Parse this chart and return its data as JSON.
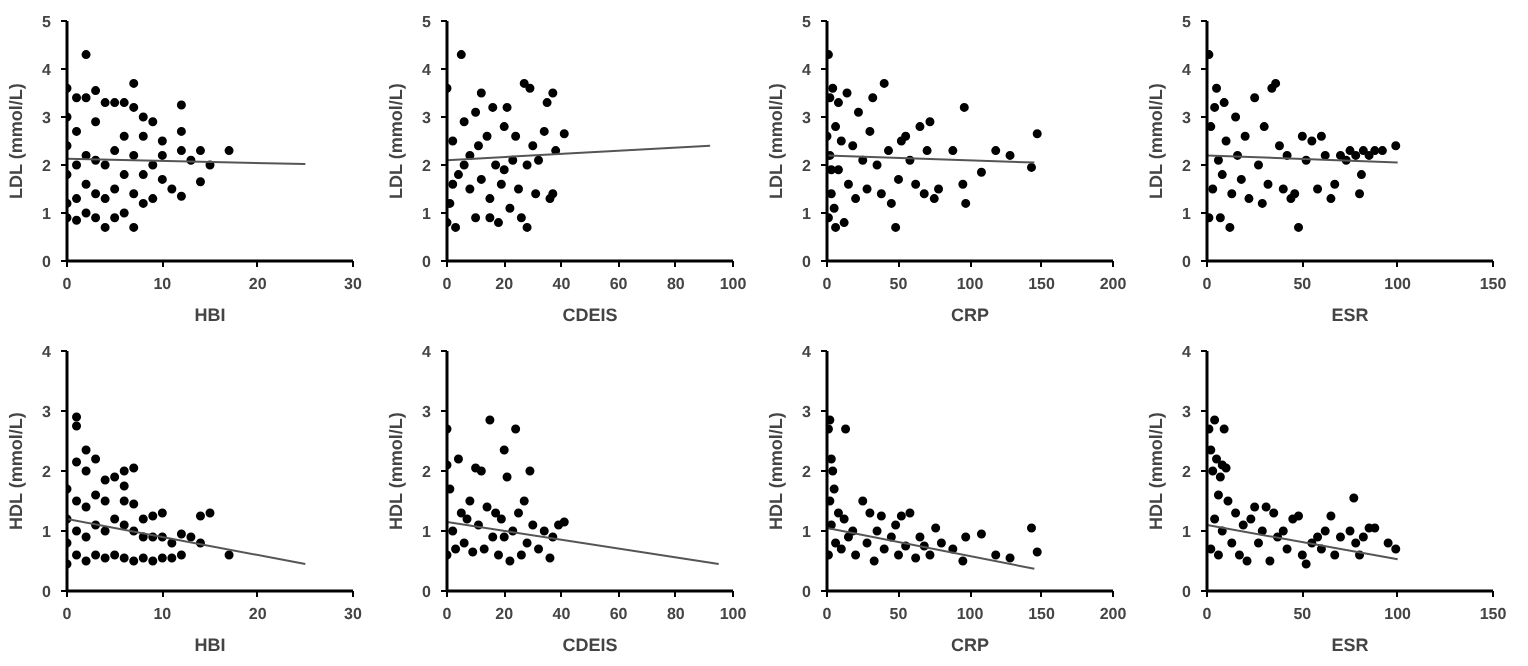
{
  "chart_data": [
    {
      "type": "scatter",
      "xlabel": "HBI",
      "ylabel": "LDL (mmol/L)",
      "xlim": [
        0,
        30
      ],
      "ylim": [
        0,
        5
      ],
      "xticks": [
        0,
        10,
        20,
        30
      ],
      "yticks": [
        0,
        1,
        2,
        3,
        4,
        5
      ],
      "series": [
        {
          "marker": "circle",
          "color": "#000000",
          "x": [
            0,
            0,
            0,
            0,
            0,
            0,
            1,
            1,
            1,
            1,
            1,
            2,
            2,
            2,
            2,
            2,
            3,
            3,
            3,
            3,
            3,
            4,
            4,
            4,
            4,
            5,
            5,
            5,
            5,
            6,
            6,
            6,
            6,
            7,
            7,
            7,
            7,
            7,
            8,
            8,
            8,
            8,
            9,
            9,
            9,
            10,
            10,
            10,
            11,
            12,
            12,
            12,
            12,
            13,
            14,
            14,
            15,
            17
          ],
          "values": [
            0.9,
            1.2,
            1.8,
            2.4,
            3.0,
            3.6,
            0.85,
            1.3,
            2.0,
            2.7,
            3.4,
            4.3,
            1.0,
            1.6,
            2.2,
            3.4,
            0.9,
            1.4,
            2.1,
            2.9,
            3.55,
            0.7,
            1.3,
            2.0,
            3.3,
            0.9,
            1.5,
            2.3,
            3.3,
            1.0,
            1.8,
            2.6,
            3.3,
            0.7,
            3.7,
            1.4,
            2.2,
            3.2,
            1.2,
            1.8,
            2.6,
            3.0,
            1.3,
            2.0,
            2.9,
            1.7,
            2.2,
            2.5,
            1.5,
            1.35,
            2.3,
            2.7,
            3.25,
            2.1,
            1.65,
            2.3,
            2.0,
            2.3
          ]
        },
        {
          "type": "line",
          "color": "#555555",
          "x": [
            0,
            25
          ],
          "values": [
            2.13,
            2.02
          ]
        }
      ]
    },
    {
      "type": "scatter",
      "xlabel": "CDEIS",
      "ylabel": "LDL (mmol/L)",
      "xlim": [
        0,
        100
      ],
      "ylim": [
        0,
        5
      ],
      "xticks": [
        0,
        20,
        40,
        60,
        80,
        100
      ],
      "yticks": [
        0,
        1,
        2,
        3,
        4,
        5
      ],
      "series": [
        {
          "marker": "circle",
          "color": "#000000",
          "x": [
            0,
            0,
            1,
            2,
            3,
            5,
            4,
            6,
            8,
            8,
            10,
            10,
            12,
            12,
            14,
            15,
            15,
            16,
            17,
            18,
            19,
            20,
            21,
            22,
            23,
            24,
            25,
            26,
            27,
            28,
            28,
            29,
            30,
            31,
            32,
            34,
            35,
            36,
            37,
            37,
            38,
            41,
            2,
            6,
            11,
            20
          ],
          "values": [
            0.8,
            3.6,
            1.2,
            2.5,
            0.7,
            4.3,
            1.8,
            2.9,
            1.5,
            2.2,
            0.9,
            3.1,
            3.5,
            1.7,
            2.6,
            0.9,
            1.3,
            3.2,
            2.0,
            0.8,
            1.6,
            2.8,
            3.2,
            1.1,
            2.1,
            2.6,
            1.5,
            0.9,
            3.7,
            0.7,
            2.0,
            3.6,
            2.4,
            1.4,
            2.1,
            2.7,
            3.3,
            1.3,
            3.5,
            1.4,
            2.3,
            2.65,
            1.6,
            2.0,
            2.4,
            1.9
          ]
        },
        {
          "type": "line",
          "color": "#555555",
          "x": [
            0,
            92
          ],
          "values": [
            2.1,
            2.4
          ]
        }
      ]
    },
    {
      "type": "scatter",
      "xlabel": "CRP",
      "ylabel": "LDL (mmol/L)",
      "xlim": [
        0,
        200
      ],
      "ylim": [
        0,
        5
      ],
      "xticks": [
        0,
        50,
        100,
        150,
        200
      ],
      "yticks": [
        0,
        1,
        2,
        3,
        4,
        5
      ],
      "series": [
        {
          "marker": "circle",
          "color": "#000000",
          "x": [
            1,
            1,
            2,
            3,
            2,
            4,
            5,
            6,
            6,
            8,
            8,
            10,
            12,
            14,
            15,
            18,
            20,
            22,
            25,
            28,
            30,
            32,
            35,
            38,
            40,
            43,
            45,
            48,
            50,
            52,
            55,
            58,
            62,
            65,
            68,
            70,
            72,
            75,
            78,
            88,
            95,
            96,
            97,
            108,
            118,
            128,
            143,
            147,
            0,
            3
          ],
          "values": [
            4.3,
            0.9,
            3.4,
            1.4,
            2.2,
            3.6,
            1.1,
            2.8,
            0.7,
            1.9,
            3.3,
            2.5,
            0.8,
            3.5,
            1.6,
            2.4,
            1.3,
            3.1,
            2.1,
            1.5,
            2.7,
            3.4,
            2.0,
            1.4,
            3.7,
            2.3,
            1.2,
            0.7,
            1.7,
            2.5,
            2.6,
            2.1,
            1.6,
            2.8,
            1.4,
            2.3,
            2.9,
            1.3,
            1.5,
            2.3,
            1.6,
            3.2,
            1.2,
            1.85,
            2.3,
            2.2,
            1.95,
            2.65,
            2.6,
            1.9
          ]
        },
        {
          "type": "line",
          "color": "#555555",
          "x": [
            0,
            145
          ],
          "values": [
            2.2,
            2.05
          ]
        }
      ]
    },
    {
      "type": "scatter",
      "xlabel": "ESR",
      "ylabel": "LDL (mmol/L)",
      "xlim": [
        0,
        150
      ],
      "ylim": [
        0,
        5
      ],
      "xticks": [
        0,
        50,
        100,
        150
      ],
      "yticks": [
        0,
        1,
        2,
        3,
        4,
        5
      ],
      "series": [
        {
          "marker": "circle",
          "color": "#000000",
          "x": [
            1,
            1,
            2,
            3,
            4,
            5,
            6,
            7,
            8,
            9,
            10,
            12,
            13,
            15,
            16,
            18,
            20,
            22,
            25,
            27,
            29,
            30,
            32,
            34,
            36,
            38,
            40,
            42,
            44,
            46,
            48,
            50,
            52,
            55,
            58,
            60,
            62,
            65,
            67,
            70,
            73,
            75,
            78,
            80,
            81,
            82,
            85,
            88,
            92,
            99
          ],
          "values": [
            4.3,
            0.9,
            2.8,
            1.5,
            3.2,
            3.6,
            2.1,
            0.9,
            1.8,
            3.3,
            2.5,
            0.7,
            1.4,
            3.0,
            2.2,
            1.7,
            2.6,
            1.3,
            3.4,
            2.0,
            1.2,
            2.8,
            1.6,
            3.6,
            3.7,
            2.4,
            1.5,
            2.2,
            1.3,
            1.4,
            0.7,
            2.6,
            2.1,
            2.5,
            1.5,
            2.6,
            2.2,
            1.3,
            1.6,
            2.2,
            2.1,
            2.3,
            2.2,
            1.4,
            1.8,
            2.3,
            2.2,
            2.3,
            2.3,
            2.4
          ]
        },
        {
          "type": "line",
          "color": "#555555",
          "x": [
            0,
            100
          ],
          "values": [
            2.2,
            2.05
          ]
        }
      ]
    },
    {
      "type": "scatter",
      "xlabel": "HBI",
      "ylabel": "HDL (mmol/L)",
      "xlim": [
        0,
        30
      ],
      "ylim": [
        0,
        4
      ],
      "xticks": [
        0,
        10,
        20,
        30
      ],
      "yticks": [
        0,
        1,
        2,
        3,
        4
      ],
      "series": [
        {
          "marker": "circle",
          "color": "#000000",
          "x": [
            0,
            0,
            0,
            0,
            1,
            1,
            1,
            1,
            1,
            1,
            2,
            2,
            2,
            2,
            2,
            3,
            3,
            3,
            3,
            4,
            4,
            4,
            4,
            5,
            5,
            5,
            6,
            6,
            6,
            6,
            6,
            7,
            7,
            7,
            7,
            8,
            8,
            8,
            9,
            9,
            9,
            10,
            10,
            10,
            11,
            11,
            12,
            12,
            13,
            14,
            14,
            15,
            17
          ],
          "values": [
            0.45,
            0.8,
            1.2,
            1.7,
            2.9,
            2.75,
            2.15,
            0.6,
            1.0,
            1.5,
            2.35,
            2.0,
            0.5,
            0.9,
            1.4,
            2.2,
            0.6,
            1.1,
            1.6,
            1.85,
            0.55,
            1.0,
            1.5,
            1.9,
            0.6,
            1.2,
            2.0,
            1.75,
            0.55,
            1.1,
            1.5,
            2.05,
            0.5,
            1.0,
            1.45,
            0.55,
            0.9,
            1.2,
            0.5,
            0.9,
            1.25,
            0.55,
            1.3,
            0.9,
            0.55,
            0.8,
            0.6,
            0.95,
            0.9,
            0.8,
            1.25,
            1.3,
            0.6
          ]
        },
        {
          "type": "line",
          "color": "#555555",
          "x": [
            0,
            25
          ],
          "values": [
            1.2,
            0.45
          ]
        }
      ]
    },
    {
      "type": "scatter",
      "xlabel": "CDEIS",
      "ylabel": "HDL (mmol/L)",
      "xlim": [
        0,
        100
      ],
      "ylim": [
        0,
        4
      ],
      "xticks": [
        0,
        20,
        40,
        60,
        80,
        100
      ],
      "yticks": [
        0,
        1,
        2,
        3,
        4
      ],
      "series": [
        {
          "marker": "circle",
          "color": "#000000",
          "x": [
            0,
            0,
            0,
            1,
            2,
            3,
            4,
            5,
            6,
            8,
            9,
            10,
            11,
            12,
            13,
            14,
            15,
            16,
            17,
            18,
            19,
            20,
            21,
            22,
            23,
            24,
            25,
            26,
            27,
            28,
            29,
            30,
            32,
            34,
            36,
            37,
            39,
            41,
            7,
            20
          ],
          "values": [
            2.7,
            2.1,
            0.6,
            1.7,
            1.0,
            0.7,
            2.2,
            1.3,
            0.8,
            1.5,
            0.65,
            2.05,
            1.1,
            2.0,
            0.7,
            1.4,
            2.85,
            0.9,
            1.3,
            0.6,
            1.2,
            2.35,
            1.9,
            0.5,
            1.0,
            2.7,
            1.3,
            0.6,
            1.5,
            0.8,
            2.0,
            1.1,
            0.7,
            1.0,
            0.55,
            0.9,
            1.1,
            1.15,
            1.2,
            0.9
          ]
        },
        {
          "type": "line",
          "color": "#555555",
          "x": [
            0,
            95
          ],
          "values": [
            1.15,
            0.45
          ]
        }
      ]
    },
    {
      "type": "scatter",
      "xlabel": "CRP",
      "ylabel": "HDL (mmol/L)",
      "xlim": [
        0,
        200
      ],
      "ylim": [
        0,
        4
      ],
      "xticks": [
        0,
        50,
        100,
        150,
        200
      ],
      "yticks": [
        0,
        1,
        2,
        3,
        4
      ],
      "series": [
        {
          "marker": "circle",
          "color": "#000000",
          "x": [
            1,
            2,
            3,
            4,
            2,
            1,
            3,
            5,
            6,
            8,
            10,
            12,
            13,
            15,
            18,
            20,
            25,
            28,
            30,
            33,
            35,
            38,
            40,
            45,
            48,
            50,
            52,
            55,
            58,
            62,
            65,
            68,
            72,
            76,
            80,
            88,
            95,
            97,
            108,
            118,
            128,
            143,
            147
          ],
          "values": [
            2.7,
            2.85,
            2.2,
            2.0,
            1.5,
            0.6,
            1.1,
            1.7,
            0.8,
            1.3,
            0.7,
            1.2,
            2.7,
            0.9,
            1.0,
            0.6,
            1.5,
            0.8,
            1.3,
            0.5,
            1.0,
            1.25,
            0.7,
            0.9,
            1.1,
            0.6,
            1.25,
            0.75,
            1.3,
            0.55,
            0.9,
            0.75,
            0.6,
            1.05,
            0.8,
            0.7,
            0.5,
            0.9,
            0.95,
            0.6,
            0.55,
            1.05,
            0.65
          ]
        },
        {
          "type": "line",
          "color": "#555555",
          "x": [
            0,
            145
          ],
          "values": [
            1.05,
            0.37
          ]
        }
      ]
    },
    {
      "type": "scatter",
      "xlabel": "ESR",
      "ylabel": "HDL (mmol/L)",
      "xlim": [
        0,
        150
      ],
      "ylim": [
        0,
        4
      ],
      "xticks": [
        0,
        50,
        100,
        150
      ],
      "yticks": [
        0,
        1,
        2,
        3,
        4
      ],
      "series": [
        {
          "marker": "circle",
          "color": "#000000",
          "x": [
            1,
            2,
            3,
            4,
            5,
            6,
            7,
            8,
            9,
            10,
            2,
            4,
            6,
            8,
            11,
            13,
            15,
            17,
            19,
            21,
            23,
            25,
            27,
            29,
            31,
            33,
            35,
            37,
            40,
            42,
            45,
            48,
            50,
            52,
            55,
            58,
            60,
            62,
            65,
            67,
            70,
            75,
            77,
            78,
            80,
            82,
            85,
            88,
            95,
            99
          ],
          "values": [
            2.7,
            2.35,
            2.0,
            2.85,
            2.2,
            1.6,
            1.9,
            2.1,
            2.7,
            2.05,
            0.7,
            1.2,
            0.6,
            1.0,
            1.5,
            0.8,
            1.3,
            0.6,
            1.1,
            0.5,
            1.2,
            1.4,
            0.8,
            1.0,
            1.4,
            0.5,
            1.3,
            0.9,
            1.0,
            0.7,
            1.2,
            1.25,
            0.6,
            0.45,
            0.8,
            0.9,
            0.7,
            1.0,
            1.25,
            0.6,
            0.9,
            1.0,
            1.55,
            0.8,
            0.6,
            0.9,
            1.05,
            1.05,
            0.8,
            0.7
          ]
        },
        {
          "type": "line",
          "color": "#555555",
          "x": [
            0,
            100
          ],
          "values": [
            1.1,
            0.53
          ]
        }
      ]
    }
  ]
}
